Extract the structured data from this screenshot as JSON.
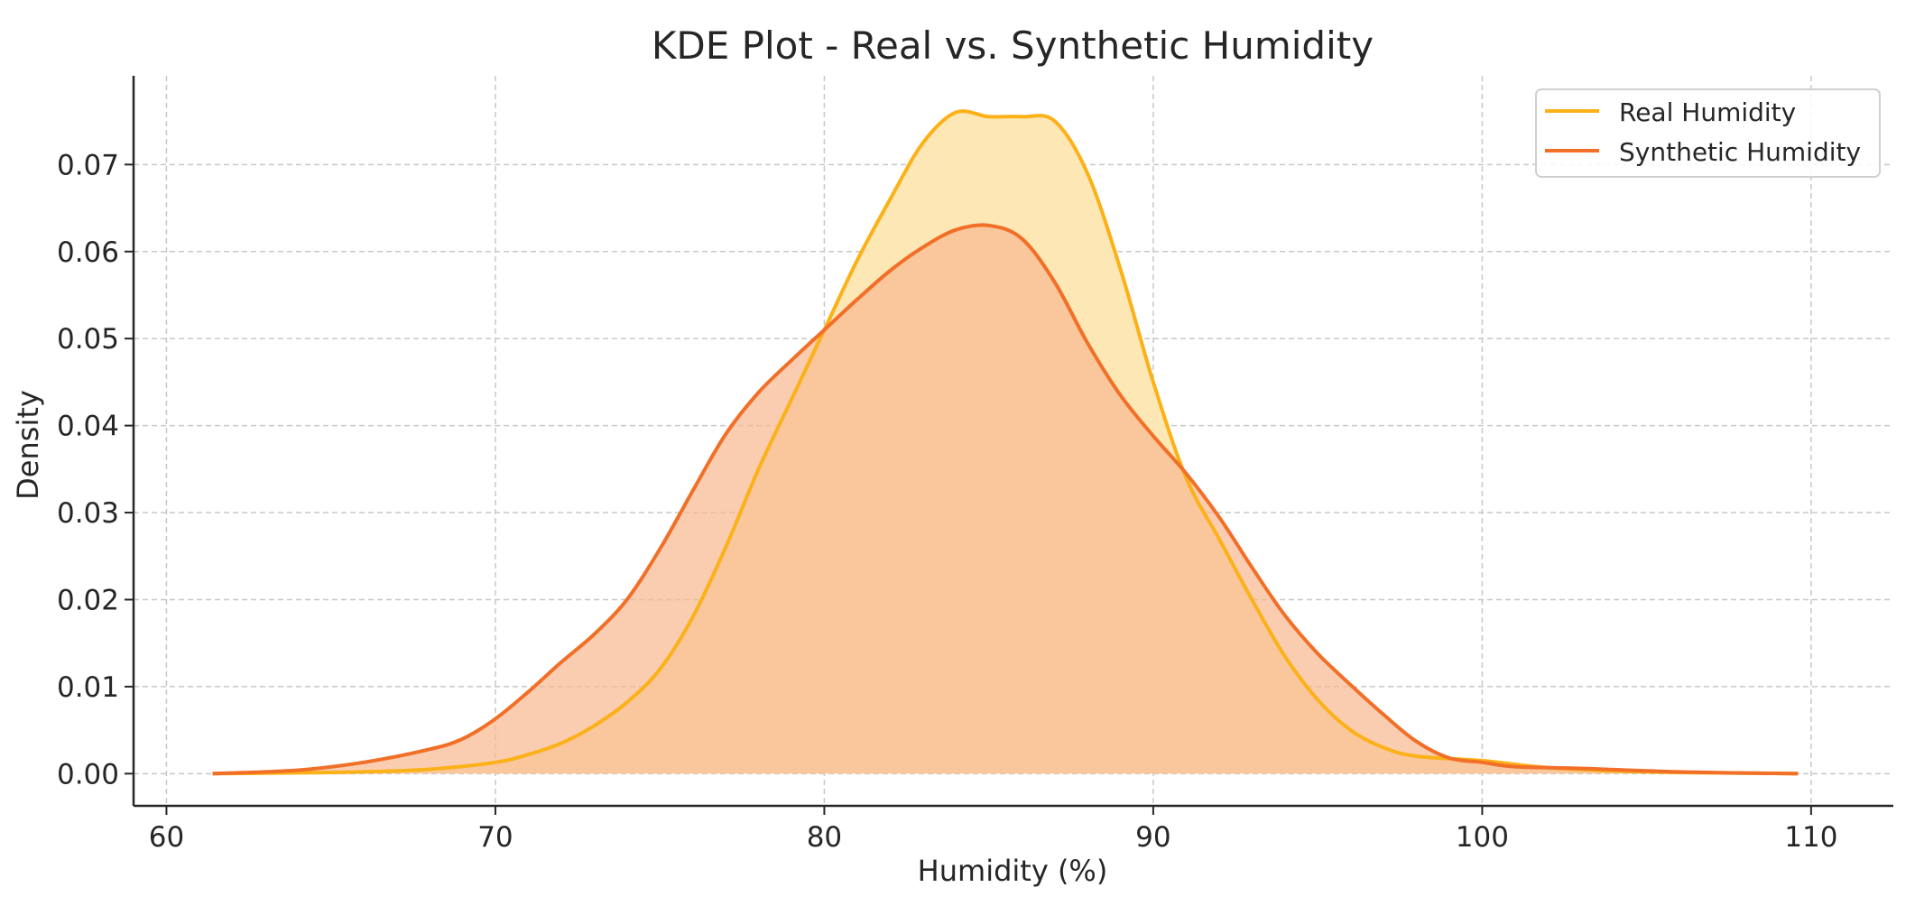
{
  "chart_data": {
    "type": "area",
    "title": "KDE Plot - Real vs. Synthetic Humidity",
    "xlabel": "Humidity (%)",
    "ylabel": "Density",
    "xlim": [
      59,
      112.5
    ],
    "ylim": [
      -0.0037,
      0.0802
    ],
    "xticks": [
      60,
      70,
      80,
      90,
      100,
      110
    ],
    "xtick_labels": [
      "60",
      "70",
      "80",
      "90",
      "100",
      "110"
    ],
    "yticks": [
      0.0,
      0.01,
      0.02,
      0.03,
      0.04,
      0.05,
      0.06,
      0.07
    ],
    "ytick_labels": [
      "0.00",
      "0.01",
      "0.02",
      "0.03",
      "0.04",
      "0.05",
      "0.06",
      "0.07"
    ],
    "grid": true,
    "legend_position": "top-right",
    "series": [
      {
        "name": "Real Humidity",
        "color": "#FBB117",
        "fill": "#FDE6B0",
        "x": [
          61.4,
          64,
          66,
          68,
          70,
          71,
          72,
          73,
          74,
          75,
          76,
          77,
          78,
          79,
          80,
          81,
          82,
          83,
          84,
          85,
          86,
          87,
          88,
          89,
          90,
          91,
          92,
          93,
          94,
          95,
          96,
          97,
          98,
          100,
          102,
          105,
          109.6
        ],
        "y": [
          0.0,
          0.0001,
          0.0002,
          0.0005,
          0.0013,
          0.0022,
          0.0035,
          0.0055,
          0.0082,
          0.012,
          0.018,
          0.026,
          0.035,
          0.043,
          0.051,
          0.059,
          0.066,
          0.0725,
          0.076,
          0.0755,
          0.0755,
          0.075,
          0.069,
          0.058,
          0.045,
          0.034,
          0.027,
          0.02,
          0.0135,
          0.0085,
          0.005,
          0.003,
          0.002,
          0.0015,
          0.0007,
          0.0002,
          0.0
        ]
      },
      {
        "name": "Synthetic Humidity",
        "color": "#F16F27",
        "fill": "#F8B890",
        "x": [
          61.4,
          64,
          66,
          68,
          69,
          70,
          71,
          72,
          73,
          74,
          75,
          76,
          77,
          78,
          79,
          80,
          81,
          82,
          83,
          84,
          85,
          86,
          87,
          88,
          89,
          90,
          91,
          92,
          93,
          94,
          95,
          96,
          97,
          98,
          99,
          100,
          101,
          103,
          106,
          109.6
        ],
        "y": [
          0.0,
          0.0004,
          0.0013,
          0.0028,
          0.004,
          0.0063,
          0.0094,
          0.0128,
          0.016,
          0.02,
          0.0258,
          0.0325,
          0.039,
          0.0438,
          0.0475,
          0.051,
          0.0545,
          0.0578,
          0.0605,
          0.0625,
          0.063,
          0.0615,
          0.0565,
          0.0495,
          0.0435,
          0.0388,
          0.0345,
          0.0295,
          0.0237,
          0.0182,
          0.0138,
          0.0102,
          0.0068,
          0.0037,
          0.0018,
          0.0013,
          0.0008,
          0.0006,
          0.0002,
          0.0
        ]
      }
    ]
  }
}
